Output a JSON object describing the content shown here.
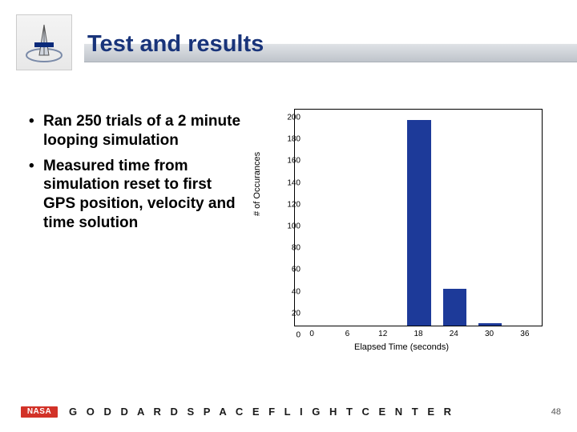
{
  "header": {
    "title": "Test and results",
    "title_color": "#19347a",
    "title_fontsize": 29
  },
  "bullets": [
    "Ran 250 trials of a 2 minute looping simulation",
    "Measured time from simulation reset to first GPS position, velocity and time solution"
  ],
  "chart": {
    "type": "bar",
    "xlabel": "Elapsed Time (seconds)",
    "ylabel": "# of Occurances",
    "x_categories": [
      0,
      6,
      12,
      18,
      24,
      30,
      36
    ],
    "values": [
      0,
      0,
      0,
      189,
      34,
      2,
      0
    ],
    "bar_color": "#1d3a99",
    "background_color": "#ffffff",
    "border_color": "#000000",
    "ylim": [
      0,
      200
    ],
    "ytick_step": 20,
    "xlim": [
      -3,
      39
    ],
    "label_fontsize": 11,
    "tick_fontsize": 10,
    "bar_width_units": 4
  },
  "footer": {
    "logo_text": "NASA",
    "logo_bg": "#d23228",
    "org_text": "G O D D A R D   S P A C E   F L I G H T   C E N T E R",
    "page_number": "48"
  }
}
